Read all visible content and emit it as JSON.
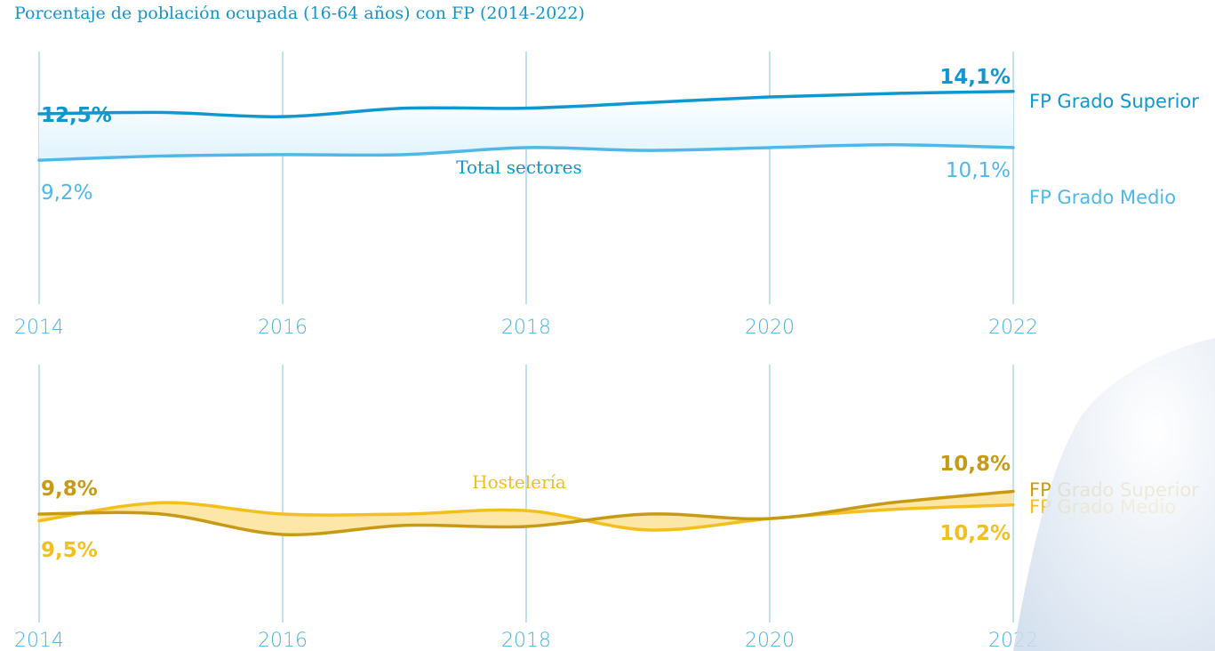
{
  "title": "Porcentaje de población ocupada (16-64 años) con FP (2014-2022)",
  "colors": {
    "grid": "#7ec4e4",
    "axis_text": "#4db3e2",
    "total_superior": "#0f97d1",
    "total_medio": "#4fb8e8",
    "total_fill": "#e1f3fc",
    "host_superior": "#c79a16",
    "host_medio": "#f3bf1c",
    "host_fill": "#fde7a8"
  },
  "chart_data": [
    {
      "type": "line",
      "title": "Total sectores",
      "x": [
        2014,
        2015,
        2016,
        2017,
        2018,
        2019,
        2020,
        2021,
        2022
      ],
      "xticks": [
        "2014",
        "2016",
        "2018",
        "2020",
        "2022"
      ],
      "ylim": [
        5,
        15
      ],
      "grid": true,
      "series": [
        {
          "name": "FP Grado Superior",
          "values": [
            12.5,
            12.6,
            12.3,
            12.9,
            12.9,
            13.3,
            13.7,
            13.95,
            14.1
          ],
          "label_start": "12,5%",
          "label_end": "14,1%"
        },
        {
          "name": "FP Grado Medio",
          "values": [
            9.2,
            9.5,
            9.6,
            9.6,
            10.1,
            9.9,
            10.1,
            10.3,
            10.1
          ],
          "label_start": "9,2%",
          "label_end": "10,1%"
        }
      ]
    },
    {
      "type": "line",
      "title": "Hostelería",
      "x": [
        2014,
        2015,
        2016,
        2017,
        2018,
        2019,
        2020,
        2021,
        2022
      ],
      "xticks": [
        "2014",
        "2016",
        "2018",
        "2020",
        "2022"
      ],
      "ylim": [
        5,
        15
      ],
      "grid": true,
      "series": [
        {
          "name": "FP Grado Superior",
          "values": [
            9.8,
            9.8,
            8.9,
            9.3,
            9.25,
            9.8,
            9.6,
            10.3,
            10.8
          ],
          "label_start": "9,8%",
          "label_end": "10,8%"
        },
        {
          "name": "FP Grado Medio",
          "values": [
            9.5,
            10.3,
            9.8,
            9.8,
            9.95,
            9.1,
            9.6,
            10.0,
            10.2
          ],
          "label_start": "9,5%",
          "label_end": "10,2%"
        }
      ]
    }
  ]
}
